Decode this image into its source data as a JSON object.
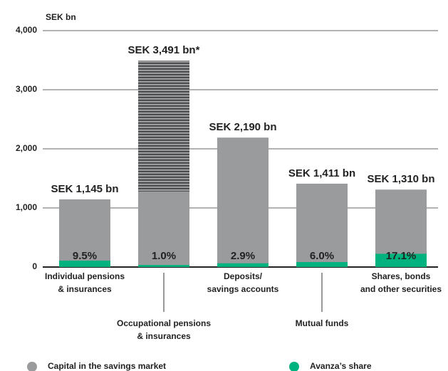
{
  "chart_data": {
    "type": "bar",
    "y_unit": "SEK bn",
    "categories": [
      "Individual pensions\n& insurances",
      "Occupational pensions\n& insurances",
      "Deposits/\nsavings accounts",
      "Mutual funds",
      "Shares, bonds\nand other securities"
    ],
    "series": [
      {
        "name": "Capital in the savings market",
        "color": "#9a9b9d",
        "values": [
          1145,
          3491,
          2190,
          1411,
          1310
        ],
        "value_labels": [
          "SEK 1,145 bn",
          "SEK 3,491 bn*",
          "SEK 2,190 bn",
          "SEK 1,411 bn",
          "SEK 1,310 bn"
        ],
        "hatched_above": [
          null,
          1280,
          null,
          null,
          null
        ]
      },
      {
        "name": "Avanza’s share",
        "color": "#00b27d",
        "values": [
          9.5,
          1.0,
          2.9,
          6.0,
          17.1
        ],
        "value_labels": [
          "9.5%",
          "1.0%",
          "2.9%",
          "6.0%",
          "17.1%"
        ]
      }
    ],
    "ylim": [
      0,
      4000
    ],
    "yticks": [
      0,
      {
        "value": 1000,
        "label": "1,000"
      },
      {
        "value": 2000,
        "label": "2,000"
      },
      {
        "value": 3000,
        "label": "3,000"
      },
      {
        "value": 4000,
        "label": "4,000"
      }
    ],
    "grid": true
  }
}
